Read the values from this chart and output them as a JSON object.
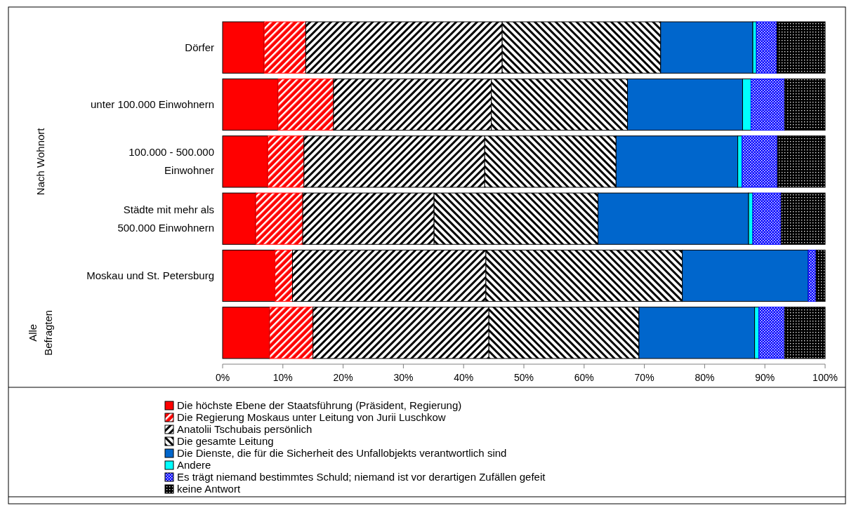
{
  "chart_data": {
    "type": "bar",
    "orientation": "horizontal",
    "stacked": true,
    "categories": [
      "Dörfer",
      "unter 100.000 Einwohnern",
      "100.000 - 500.000 Einwohner",
      "Städte mit mehr als 500.000 Einwohnern",
      "Moskau und St. Petersburg",
      null
    ],
    "series": [
      {
        "name": "Die höchste Ebene der Staatsführung (Präsident, Regierung)",
        "color": "#ff0000",
        "values": [
          6.9,
          9.2,
          7.5,
          5.5,
          8.7,
          7.8
        ]
      },
      {
        "name": "Die Regierung Moskaus unter Leitung von Jurii Luschkow",
        "color": "#ff0000",
        "values": [
          6.9,
          9.2,
          6.0,
          7.8,
          2.9,
          7.2
        ]
      },
      {
        "name": "Anatolii Tschubais persönlich",
        "color": "#000000",
        "values": [
          32.6,
          26.2,
          30.0,
          21.8,
          32.1,
          29.2
        ]
      },
      {
        "name": "Die gesamte Leitung",
        "color": "#000000",
        "values": [
          26.3,
          22.6,
          21.8,
          27.2,
          32.6,
          24.9
        ]
      },
      {
        "name": "Die Dienste, die für die Sicherheit des Unfallobjekts verantwortlich sind",
        "color": "#0066cc",
        "values": [
          15.3,
          19.1,
          20.2,
          25.0,
          20.9,
          19.2
        ]
      },
      {
        "name": "Andere",
        "color": "#00ffff",
        "values": [
          0.6,
          1.4,
          0.7,
          0.7,
          0,
          0.7
        ]
      },
      {
        "name": "Es trägt niemand bestimmtes Schuld; niemand ist vor derartigen Zufällen gefeit",
        "color": "#0000ff",
        "values": [
          3.4,
          5.6,
          5.9,
          4.7,
          1.3,
          4.3
        ]
      },
      {
        "name": "keine Antwort",
        "color": "#000000",
        "values": [
          8.0,
          6.7,
          7.9,
          7.3,
          1.5,
          6.7
        ]
      }
    ],
    "xlim": [
      0,
      100
    ],
    "xticks": [
      {
        "value": 0,
        "label": "0%"
      },
      {
        "value": 10,
        "label": "10%"
      },
      {
        "value": 20,
        "label": "20%"
      },
      {
        "value": 30,
        "label": "30%"
      },
      {
        "value": 40,
        "label": "40%"
      },
      {
        "value": 50,
        "label": "50%"
      },
      {
        "value": 60,
        "label": "60%"
      },
      {
        "value": 70,
        "label": "70%"
      },
      {
        "value": 80,
        "label": "80%"
      },
      {
        "value": 90,
        "label": "90%"
      },
      {
        "value": 100,
        "label": "100%"
      }
    ],
    "annotations": [
      "Nach Wohnort",
      "Alle Befragten"
    ],
    "legend": "bottom"
  }
}
